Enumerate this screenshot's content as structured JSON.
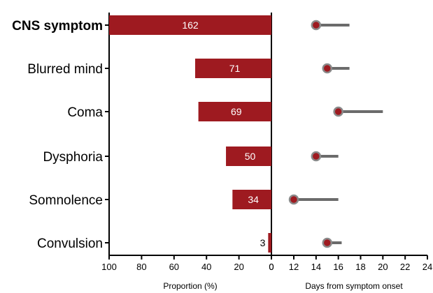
{
  "chart_data": [
    {
      "type": "bar",
      "orientation": "horizontal",
      "direction": "reversed",
      "categories": [
        "CNS symptom",
        "Blurred mind",
        "Coma",
        "Dysphoria",
        "Somnolence",
        "Convulsion"
      ],
      "values": [
        100,
        47,
        45,
        28,
        24,
        2
      ],
      "data_labels": [
        "162",
        "71",
        "69",
        "50",
        "34",
        "3"
      ],
      "xlabel": "Proportion (%)",
      "xlim": [
        0,
        100
      ],
      "xticks": [
        100,
        80,
        60,
        40,
        20,
        0
      ],
      "bar_color": "#9e1a20",
      "label_color": "#ffffff",
      "label_color_small": "#000000",
      "grid": false
    },
    {
      "type": "range",
      "categories": [
        "CNS symptom",
        "Blurred mind",
        "Coma",
        "Dysphoria",
        "Somnolence",
        "Convulsion"
      ],
      "points": [
        {
          "median": 14,
          "upper": 17
        },
        {
          "median": 15,
          "upper": 17
        },
        {
          "median": 16,
          "upper": 20
        },
        {
          "median": 14,
          "upper": 16
        },
        {
          "median": 12,
          "upper": 16
        },
        {
          "median": 15,
          "upper": 16.3
        }
      ],
      "xlabel": "Days from symptom onset",
      "xlim": [
        10,
        24
      ],
      "xticks": [
        0,
        12,
        14,
        16,
        18,
        20,
        22,
        24
      ],
      "axis_break": true,
      "marker_color": "#9e1a20",
      "marker_stroke": "#8a8a8a",
      "line_color": "#6b6b6b",
      "grid": false
    }
  ]
}
